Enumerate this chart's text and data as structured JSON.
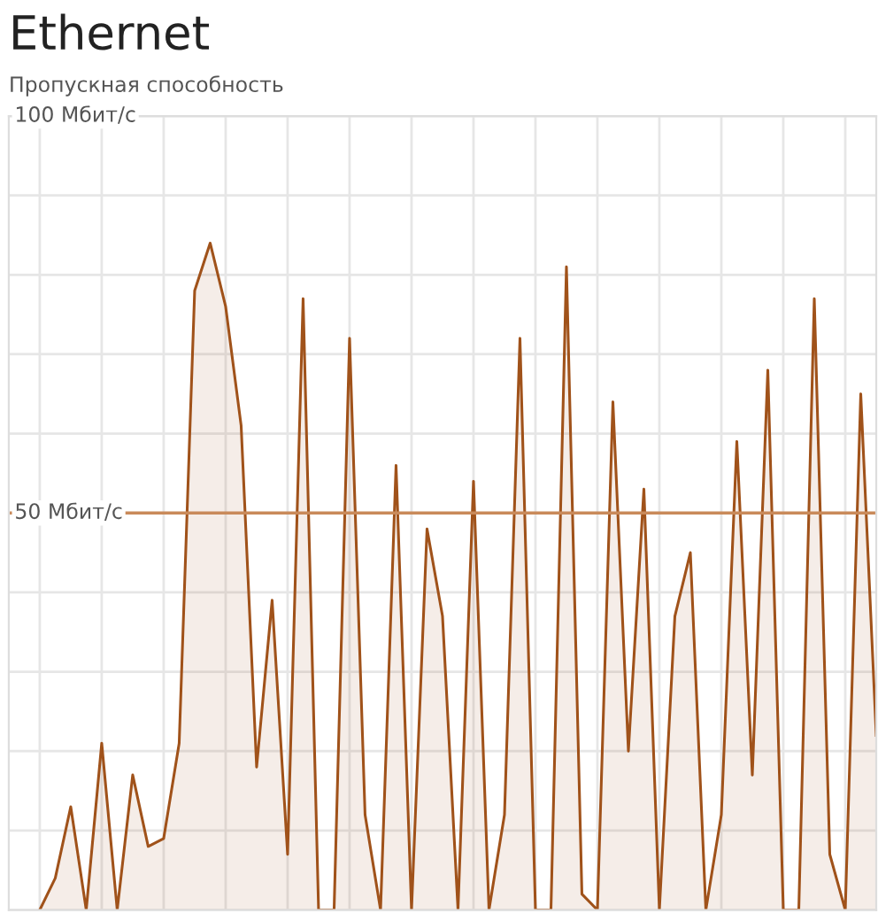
{
  "chart_data": {
    "type": "area",
    "title": "Ethernet",
    "ylabel": "Пропускная способность",
    "categories": [
      null,
      null,
      null,
      null,
      null,
      null,
      null,
      null,
      null,
      null,
      null,
      null,
      null,
      null,
      null,
      null,
      null,
      null,
      null,
      null,
      null,
      null,
      null,
      null,
      null,
      null,
      null,
      null,
      null,
      null,
      null,
      null,
      null,
      null,
      null,
      null,
      null,
      null,
      null,
      null,
      null,
      null,
      null,
      null,
      null,
      null,
      null,
      null,
      null,
      null,
      null,
      null,
      null,
      null,
      null
    ],
    "series": [
      {
        "color": "#a0521a",
        "values": [
          0,
          4,
          13,
          0,
          21,
          0,
          17,
          8,
          9,
          21,
          78,
          84,
          76,
          61,
          18,
          39,
          7,
          77,
          0,
          0,
          72,
          12,
          0,
          56,
          0,
          48,
          37,
          0,
          54,
          0,
          12,
          72,
          0,
          0,
          81,
          2,
          0,
          64,
          20,
          53,
          0,
          37,
          45,
          0,
          12,
          59,
          17,
          68,
          0,
          0,
          77,
          7,
          0,
          65,
          22
        ]
      }
    ],
    "ylim": [
      0,
      100
    ],
    "yticks": [
      {
        "value": 0,
        "label": null
      },
      {
        "value": 10,
        "label": null
      },
      {
        "value": 20,
        "label": null
      },
      {
        "value": 30,
        "label": null
      },
      {
        "value": 40,
        "label": null
      },
      {
        "value": 50,
        "label": "50 Мбит/с"
      },
      {
        "value": 60,
        "label": null
      },
      {
        "value": 70,
        "label": null
      },
      {
        "value": 80,
        "label": null
      },
      {
        "value": 90,
        "label": null
      },
      {
        "value": 100,
        "label": "100 Мбит/с"
      }
    ],
    "ref_lines": [
      {
        "axis": "y",
        "value": 50,
        "color": "#c98a5a"
      }
    ],
    "grid": true,
    "line_style": "solid",
    "marker": "none"
  }
}
